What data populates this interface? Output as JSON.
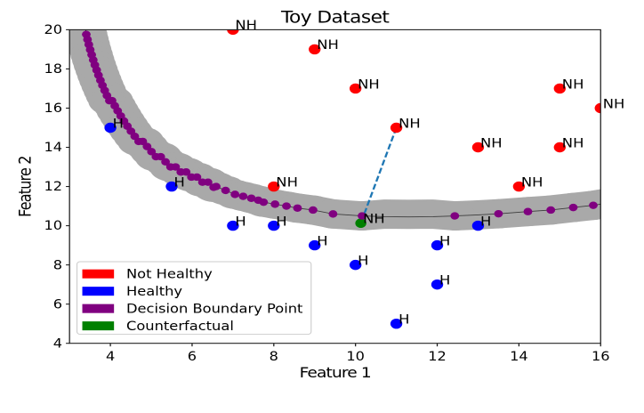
{
  "window": {
    "background": "#ffffff"
  },
  "chart_data": {
    "type": "scatter",
    "title": "Toy Dataset",
    "xlabel": "Feature 1",
    "ylabel": "Feature 2",
    "xlim": [
      3,
      16
    ],
    "ylim": [
      4,
      20
    ],
    "x_ticks": [
      4,
      6,
      8,
      10,
      12,
      14,
      16
    ],
    "y_ticks": [
      4,
      6,
      8,
      10,
      12,
      14,
      16,
      18,
      20
    ],
    "grid": false,
    "legend_position": "lower left",
    "series": [
      {
        "name": "Not Healthy",
        "color": "#ff0000",
        "point_label": "NH",
        "points": [
          [
            7,
            20
          ],
          [
            9,
            19
          ],
          [
            10,
            17
          ],
          [
            15,
            17
          ],
          [
            16,
            16
          ],
          [
            11,
            15
          ],
          [
            13,
            14
          ],
          [
            15,
            14
          ],
          [
            8,
            12
          ],
          [
            14,
            12
          ]
        ]
      },
      {
        "name": "Healthy",
        "color": "#0000ff",
        "point_label": "H",
        "points": [
          [
            4,
            15
          ],
          [
            5.5,
            12
          ],
          [
            7,
            10
          ],
          [
            8,
            10
          ],
          [
            9,
            9
          ],
          [
            13,
            10
          ],
          [
            12,
            9
          ],
          [
            10,
            8
          ],
          [
            12,
            7
          ],
          [
            11,
            5
          ]
        ]
      },
      {
        "name": "Decision Boundary Point",
        "color": "#800080",
        "point_label": "",
        "points": [
          [
            3.38,
            20.28
          ],
          [
            3.41,
            19.76
          ],
          [
            3.44,
            19.5
          ],
          [
            3.472,
            19.24
          ],
          [
            3.506,
            18.98
          ],
          [
            3.542,
            18.72
          ],
          [
            3.58,
            18.46
          ],
          [
            3.62,
            18.2
          ],
          [
            3.664,
            17.94
          ],
          [
            3.708,
            17.68
          ],
          [
            3.756,
            17.42
          ],
          [
            3.806,
            17.16
          ],
          [
            3.86,
            16.9
          ],
          [
            3.916,
            16.64
          ],
          [
            3.976,
            16.38
          ],
          [
            4.04,
            16.38
          ],
          [
            4.108,
            16.12
          ],
          [
            4.178,
            15.86
          ],
          [
            4.254,
            15.6
          ],
          [
            4.332,
            15.34
          ],
          [
            4.416,
            15.08
          ],
          [
            4.504,
            14.82
          ],
          [
            4.596,
            14.56
          ],
          [
            4.692,
            14.3
          ],
          [
            4.792,
            14.3
          ],
          [
            4.898,
            14.04
          ],
          [
            5.006,
            13.78
          ],
          [
            5.116,
            13.52
          ],
          [
            5.232,
            13.52
          ],
          [
            5.35,
            13.26
          ],
          [
            5.472,
            13.0
          ],
          [
            5.596,
            13.0
          ],
          [
            5.724,
            12.74
          ],
          [
            5.854,
            12.74
          ],
          [
            5.984,
            12.48
          ],
          [
            6.118,
            12.48
          ],
          [
            6.254,
            12.22
          ],
          [
            6.39,
            12.22
          ],
          [
            6.528,
            11.96
          ],
          [
            6.59,
            12.0
          ],
          [
            6.82,
            11.8
          ],
          [
            7.05,
            11.6
          ],
          [
            7.25,
            11.5
          ],
          [
            7.45,
            11.4
          ],
          [
            7.62,
            11.3
          ],
          [
            7.75,
            11.2
          ],
          [
            8.03,
            11.1
          ],
          [
            8.31,
            11.0
          ],
          [
            8.58,
            10.9
          ],
          [
            8.96,
            10.8
          ],
          [
            9.45,
            10.6
          ],
          [
            10.16,
            10.5
          ],
          [
            12.43,
            10.5
          ],
          [
            13.5,
            10.61
          ],
          [
            14.22,
            10.72
          ],
          [
            14.78,
            10.8
          ],
          [
            15.33,
            10.93
          ],
          [
            15.82,
            11.04
          ]
        ]
      },
      {
        "name": "Counterfactual",
        "color": "#008000",
        "point_label": "NH",
        "points": [
          [
            10.13,
            10.13
          ]
        ]
      }
    ],
    "decision_boundary": {
      "curve": [
        [
          3.38,
          20.28
        ],
        [
          3.41,
          19.76
        ],
        [
          3.44,
          19.5
        ],
        [
          3.472,
          19.24
        ],
        [
          3.506,
          18.98
        ],
        [
          3.542,
          18.72
        ],
        [
          3.58,
          18.46
        ],
        [
          3.62,
          18.2
        ],
        [
          3.664,
          17.94
        ],
        [
          3.708,
          17.68
        ],
        [
          3.756,
          17.42
        ],
        [
          3.806,
          17.16
        ],
        [
          3.86,
          16.9
        ],
        [
          3.916,
          16.64
        ],
        [
          3.976,
          16.38
        ],
        [
          4.04,
          16.38
        ],
        [
          4.108,
          16.12
        ],
        [
          4.178,
          15.86
        ],
        [
          4.254,
          15.6
        ],
        [
          4.332,
          15.34
        ],
        [
          4.416,
          15.08
        ],
        [
          4.504,
          14.82
        ],
        [
          4.596,
          14.56
        ],
        [
          4.692,
          14.3
        ],
        [
          4.792,
          14.3
        ],
        [
          4.898,
          14.04
        ],
        [
          5.006,
          13.78
        ],
        [
          5.116,
          13.52
        ],
        [
          5.232,
          13.52
        ],
        [
          5.35,
          13.26
        ],
        [
          5.472,
          13.0
        ],
        [
          5.596,
          13.0
        ],
        [
          5.724,
          12.74
        ],
        [
          5.854,
          12.74
        ],
        [
          5.984,
          12.48
        ],
        [
          6.118,
          12.48
        ],
        [
          6.254,
          12.22
        ],
        [
          6.39,
          12.22
        ],
        [
          6.528,
          11.96
        ],
        [
          6.59,
          12.0
        ],
        [
          6.82,
          11.8
        ],
        [
          7.05,
          11.6
        ],
        [
          7.25,
          11.5
        ],
        [
          7.45,
          11.4
        ],
        [
          7.62,
          11.3
        ],
        [
          7.75,
          11.2
        ],
        [
          8.03,
          11.1
        ],
        [
          8.31,
          11.0
        ],
        [
          8.58,
          10.9
        ],
        [
          8.96,
          10.8
        ],
        [
          9.45,
          10.6
        ],
        [
          10.16,
          10.5
        ],
        [
          10.7,
          10.46
        ],
        [
          11.3,
          10.45
        ],
        [
          11.9,
          10.46
        ],
        [
          12.43,
          10.5
        ],
        [
          13.0,
          10.55
        ],
        [
          13.5,
          10.61
        ],
        [
          14.22,
          10.72
        ],
        [
          14.78,
          10.8
        ],
        [
          15.33,
          10.93
        ],
        [
          15.82,
          11.04
        ],
        [
          16.05,
          11.12
        ]
      ],
      "band": [
        [
          3.38,
          20.28
        ],
        [
          3.41,
          19.76
        ],
        [
          3.44,
          19.5
        ],
        [
          3.472,
          19.24
        ],
        [
          3.506,
          18.98
        ],
        [
          3.542,
          18.72
        ],
        [
          3.58,
          18.46
        ],
        [
          3.62,
          18.2
        ],
        [
          3.664,
          17.94
        ],
        [
          3.708,
          17.68
        ],
        [
          3.756,
          17.42
        ],
        [
          3.806,
          17.16
        ],
        [
          3.86,
          16.9
        ],
        [
          3.916,
          16.64
        ],
        [
          3.976,
          16.38
        ],
        [
          4.04,
          16.38
        ],
        [
          4.108,
          16.12
        ],
        [
          4.178,
          15.86
        ],
        [
          4.254,
          15.6
        ],
        [
          4.332,
          15.34
        ],
        [
          4.416,
          15.08
        ],
        [
          4.504,
          14.82
        ],
        [
          4.596,
          14.56
        ],
        [
          4.692,
          14.3
        ],
        [
          4.792,
          14.3
        ],
        [
          4.898,
          14.04
        ],
        [
          5.006,
          13.78
        ],
        [
          5.116,
          13.52
        ],
        [
          5.232,
          13.52
        ],
        [
          5.35,
          13.26
        ],
        [
          5.472,
          13.0
        ],
        [
          5.596,
          13.0
        ],
        [
          5.724,
          12.74
        ],
        [
          5.854,
          12.74
        ],
        [
          5.984,
          12.48
        ],
        [
          6.118,
          12.48
        ],
        [
          6.254,
          12.22
        ],
        [
          6.39,
          12.22
        ],
        [
          6.528,
          11.96
        ],
        [
          6.59,
          12.0
        ],
        [
          6.82,
          11.8
        ],
        [
          7.05,
          11.6
        ],
        [
          7.25,
          11.5
        ],
        [
          7.45,
          11.4
        ],
        [
          7.62,
          11.3
        ],
        [
          7.75,
          11.2
        ],
        [
          8.03,
          11.1
        ],
        [
          8.31,
          11.0
        ],
        [
          8.58,
          10.9
        ],
        [
          8.96,
          10.8
        ],
        [
          9.45,
          10.6
        ],
        [
          10.16,
          10.5
        ],
        [
          10.7,
          10.59
        ],
        [
          11.3,
          10.58
        ],
        [
          11.9,
          10.59
        ],
        [
          12.43,
          10.5
        ],
        [
          13.0,
          10.55
        ],
        [
          13.5,
          10.61
        ],
        [
          14.22,
          10.72
        ],
        [
          14.78,
          10.8
        ],
        [
          15.33,
          10.93
        ],
        [
          15.82,
          11.04
        ],
        [
          16.05,
          11.12
        ]
      ],
      "band_color": "#a9a9a9",
      "line_color": "#3c3c3c"
    },
    "counterfactual_link": {
      "from": [
        11,
        15
      ],
      "to": [
        10.13,
        10.13
      ],
      "color": "#1f77b4",
      "style": "dashed"
    },
    "legend": {
      "entries": [
        {
          "label": "Not Healthy",
          "color": "#ff0000"
        },
        {
          "label": "Healthy",
          "color": "#0000ff"
        },
        {
          "label": "Decision Boundary Point",
          "color": "#800080"
        },
        {
          "label": "Counterfactual",
          "color": "#008000"
        }
      ]
    }
  }
}
